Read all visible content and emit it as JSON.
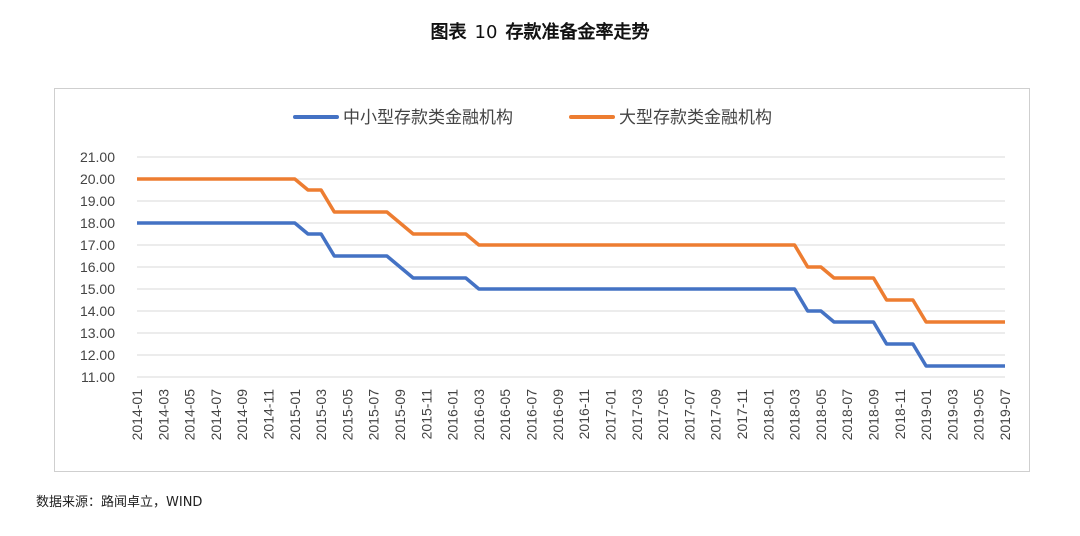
{
  "figure": {
    "title_prefix": "图表",
    "title_number": "10",
    "title_text": "存款准备金率走势",
    "source": "数据来源：路闻卓立，WIND"
  },
  "chart_data": {
    "type": "line",
    "title": "",
    "xlabel": "",
    "ylabel": "",
    "ylim": [
      11,
      21
    ],
    "yticks": [
      "21.00",
      "20.00",
      "19.00",
      "18.00",
      "17.00",
      "16.00",
      "15.00",
      "14.00",
      "13.00",
      "12.00",
      "11.00"
    ],
    "grid": true,
    "legend_position": "top",
    "x_ticks": [
      "2014-01",
      "2014-03",
      "2014-05",
      "2014-07",
      "2014-09",
      "2014-11",
      "2015-01",
      "2015-03",
      "2015-05",
      "2015-07",
      "2015-09",
      "2015-11",
      "2016-01",
      "2016-03",
      "2016-05",
      "2016-07",
      "2016-09",
      "2016-11",
      "2017-01",
      "2017-03",
      "2017-05",
      "2017-07",
      "2017-09",
      "2017-11",
      "2018-01",
      "2018-03",
      "2018-05",
      "2018-07",
      "2018-09",
      "2018-11",
      "2019-01",
      "2019-03",
      "2019-05",
      "2019-07"
    ],
    "series": [
      {
        "name": "中小型存款类金融机构",
        "color": "#4472c4",
        "points": [
          [
            "2014-01",
            18.0
          ],
          [
            "2015-01",
            18.0
          ],
          [
            "2015-02",
            17.5
          ],
          [
            "2015-03",
            17.5
          ],
          [
            "2015-04",
            16.5
          ],
          [
            "2015-08",
            16.5
          ],
          [
            "2015-10",
            15.5
          ],
          [
            "2016-02",
            15.5
          ],
          [
            "2016-03",
            15.0
          ],
          [
            "2018-03",
            15.0
          ],
          [
            "2018-04",
            14.0
          ],
          [
            "2018-05",
            14.0
          ],
          [
            "2018-06",
            13.5
          ],
          [
            "2018-09",
            13.5
          ],
          [
            "2018-10",
            12.5
          ],
          [
            "2018-12",
            12.5
          ],
          [
            "2019-01",
            11.5
          ],
          [
            "2019-07",
            11.5
          ]
        ]
      },
      {
        "name": "大型存款类金融机构",
        "color": "#ed7d31",
        "points": [
          [
            "2014-01",
            20.0
          ],
          [
            "2015-01",
            20.0
          ],
          [
            "2015-02",
            19.5
          ],
          [
            "2015-03",
            19.5
          ],
          [
            "2015-04",
            18.5
          ],
          [
            "2015-08",
            18.5
          ],
          [
            "2015-10",
            17.5
          ],
          [
            "2016-02",
            17.5
          ],
          [
            "2016-03",
            17.0
          ],
          [
            "2018-03",
            17.0
          ],
          [
            "2018-04",
            16.0
          ],
          [
            "2018-05",
            16.0
          ],
          [
            "2018-06",
            15.5
          ],
          [
            "2018-09",
            15.5
          ],
          [
            "2018-10",
            14.5
          ],
          [
            "2018-12",
            14.5
          ],
          [
            "2019-01",
            13.5
          ],
          [
            "2019-07",
            13.5
          ]
        ]
      }
    ]
  }
}
